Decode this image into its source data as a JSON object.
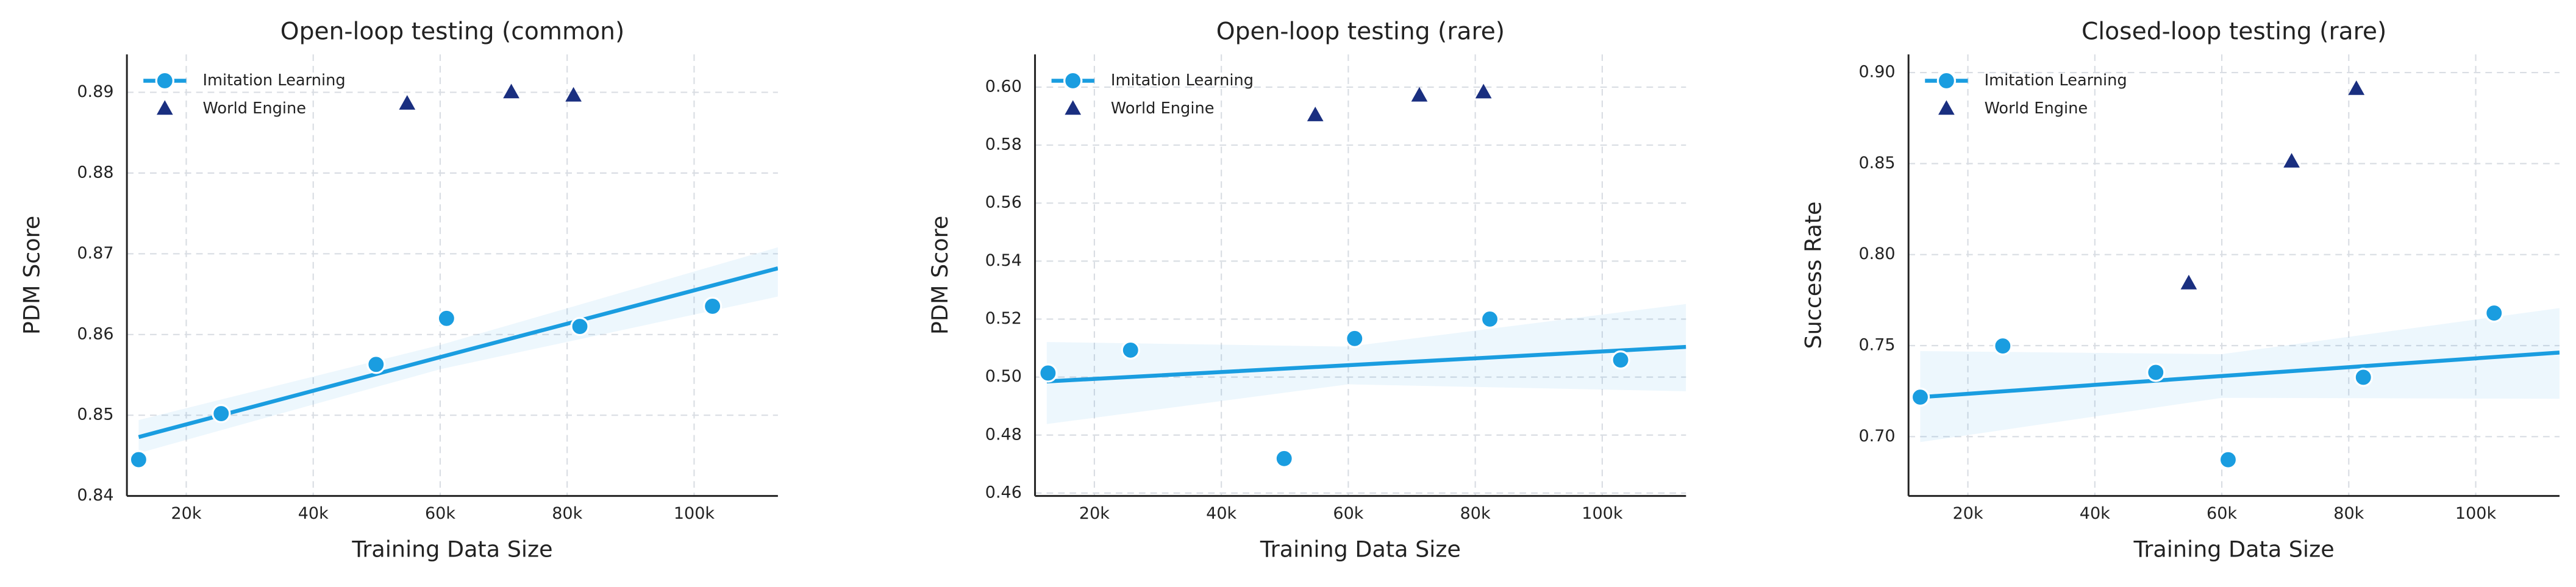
{
  "chart_data": [
    {
      "type": "scatter",
      "title": "Open-loop testing (common)",
      "xlabel": "Training Data Size",
      "ylabel": "PDM Score",
      "xlim": [
        10650,
        113200
      ],
      "xticks": [
        {
          "value": 20000,
          "label": "20k"
        },
        {
          "value": 40000,
          "label": "40k"
        },
        {
          "value": 60000,
          "label": "60k"
        },
        {
          "value": 80000,
          "label": "80k"
        },
        {
          "value": 100000,
          "label": "100k"
        }
      ],
      "ylim": [
        0.84,
        0.8947
      ],
      "yticks": [
        0.84,
        0.85,
        0.86,
        0.87,
        0.88,
        0.89
      ],
      "grid": true,
      "legend": "upper left",
      "series": [
        {
          "name": "Imitation Learning",
          "color": "#1a9de0",
          "marker": "circle",
          "x": [
            12500,
            25500,
            49900,
            61000,
            82000,
            102900
          ],
          "values": [
            0.8445,
            0.8502,
            0.8563,
            0.862,
            0.861,
            0.8635
          ],
          "fit": {
            "x": [
              12500,
              60000,
              113200
            ],
            "values": [
              0.8473,
              0.8572,
              0.8682
            ],
            "lower": [
              0.8453,
              0.8557,
              0.8647
            ],
            "upper": [
              0.8494,
              0.8587,
              0.8708
            ]
          }
        },
        {
          "name": "World Engine",
          "color": "#1a2f80",
          "marker": "triangle",
          "x": [
            54800,
            71200,
            81000
          ],
          "values": [
            0.8886,
            0.89,
            0.8896
          ]
        }
      ]
    },
    {
      "type": "scatter",
      "title": "Open-loop testing (rare)",
      "xlabel": "Training Data Size",
      "ylabel": "PDM Score",
      "xlim": [
        10650,
        113200
      ],
      "xticks": [
        {
          "value": 20000,
          "label": "20k"
        },
        {
          "value": 40000,
          "label": "40k"
        },
        {
          "value": 60000,
          "label": "60k"
        },
        {
          "value": 80000,
          "label": "80k"
        },
        {
          "value": 100000,
          "label": "100k"
        }
      ],
      "ylim": [
        0.459,
        0.6113
      ],
      "yticks": [
        0.46,
        0.48,
        {
          "value": 0.5,
          "label": "0.50"
        },
        0.52,
        0.54,
        0.56,
        0.58,
        {
          "value": 0.6,
          "label": "0.60"
        }
      ],
      "grid": true,
      "legend": "upper left",
      "series": [
        {
          "name": "Imitation Learning",
          "color": "#1a9de0",
          "marker": "circle",
          "x": [
            12700,
            25700,
            49900,
            61000,
            82300,
            102900
          ],
          "values": [
            0.5014,
            0.5093,
            0.4719,
            0.5133,
            0.52,
            0.5059
          ],
          "fit": {
            "x": [
              12500,
              60000,
              113200
            ],
            "values": [
              0.4985,
              0.5041,
              0.5104
            ],
            "lower": [
              0.4838,
              0.4975,
              0.4951
            ],
            "upper": [
              0.5121,
              0.5105,
              0.5252
            ]
          }
        },
        {
          "name": "World Engine",
          "color": "#1a2f80",
          "marker": "triangle",
          "x": [
            54800,
            71200,
            81300
          ],
          "values": [
            0.5903,
            0.5971,
            0.5982
          ]
        }
      ]
    },
    {
      "type": "scatter",
      "title": "Closed-loop testing (rare)",
      "xlabel": "Training Data Size",
      "ylabel": "Success Rate",
      "xlim": [
        10650,
        113200
      ],
      "xticks": [
        {
          "value": 20000,
          "label": "20k"
        },
        {
          "value": 40000,
          "label": "40k"
        },
        {
          "value": 60000,
          "label": "60k"
        },
        {
          "value": 80000,
          "label": "80k"
        },
        {
          "value": 100000,
          "label": "100k"
        }
      ],
      "ylim": [
        0.6674,
        0.91
      ],
      "yticks": [
        {
          "value": 0.7,
          "label": "0.70"
        },
        0.75,
        {
          "value": 0.8,
          "label": "0.80"
        },
        0.85,
        {
          "value": 0.9,
          "label": "0.90"
        }
      ],
      "grid": true,
      "legend": "upper left",
      "series": [
        {
          "name": "Imitation Learning",
          "color": "#1a9de0",
          "marker": "circle",
          "x": [
            12500,
            25500,
            49600,
            61000,
            82300,
            102900
          ],
          "values": [
            0.7217,
            0.7498,
            0.7353,
            0.6873,
            0.7326,
            0.7679
          ],
          "fit": {
            "x": [
              12500,
              60000,
              113200
            ],
            "values": [
              0.7217,
              0.7333,
              0.7462
            ],
            "lower": [
              0.697,
              0.7213,
              0.7208
            ],
            "upper": [
              0.747,
              0.7453,
              0.7706
            ]
          }
        },
        {
          "name": "World Engine",
          "color": "#1a2f80",
          "marker": "triangle",
          "x": [
            54800,
            71000,
            81200
          ],
          "values": [
            0.7842,
            0.8511,
            0.891
          ]
        }
      ]
    }
  ]
}
